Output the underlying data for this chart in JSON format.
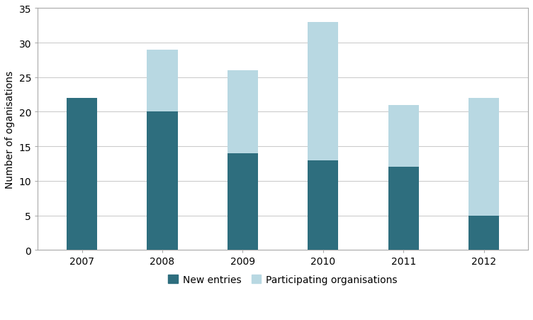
{
  "years": [
    "2007",
    "2008",
    "2009",
    "2010",
    "2011",
    "2012"
  ],
  "new_entries": [
    22,
    20,
    14,
    13,
    12,
    5
  ],
  "total": [
    22,
    29,
    26,
    33,
    21,
    22
  ],
  "color_new_entries": "#2e6e7e",
  "color_participating": "#b8d8e2",
  "ylabel": "Number of oganisations",
  "ylim": [
    0,
    35
  ],
  "yticks": [
    0,
    5,
    10,
    15,
    20,
    25,
    30,
    35
  ],
  "legend_new": "New entries",
  "legend_part": "Participating organisations",
  "bar_width": 0.38,
  "figsize": [
    7.52,
    4.52
  ],
  "dpi": 100,
  "background_color": "#ffffff",
  "grid_color": "#cccccc",
  "spine_color": "#aaaaaa",
  "tick_fontsize": 10,
  "label_fontsize": 10
}
